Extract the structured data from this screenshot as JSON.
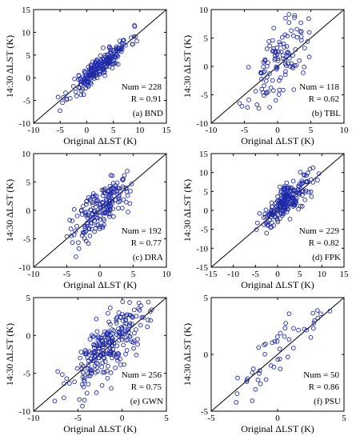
{
  "colors": {
    "point": "#1f2aa8",
    "line": "#000000",
    "frame": "#000000"
  },
  "chart_data": [
    {
      "type": "scatter",
      "panel": "(a) BND",
      "xlabel": "Original ΔLST (K)",
      "ylabel": "14:30 ΔLST (K)",
      "xlim": [
        -10,
        15
      ],
      "ylim": [
        -10,
        15
      ],
      "xticks": [
        -10,
        -5,
        0,
        5,
        10,
        15
      ],
      "yticks": [
        -10,
        -5,
        0,
        5,
        10,
        15
      ],
      "num_label": "Num = 228",
      "r_label": "R = 0.91",
      "points": {
        "seed": 11,
        "n": 228,
        "center": [
          2.5,
          2.5
        ],
        "sx": 2.8,
        "r": 0.91,
        "xlim": [
          -6,
          12
        ]
      }
    },
    {
      "type": "scatter",
      "panel": "(b) TBL",
      "xlabel": "Original ΔLST (K)",
      "ylabel": "14:30 ΔLST (K)",
      "xlim": [
        -10,
        10
      ],
      "ylim": [
        -10,
        10
      ],
      "xticks": [
        -10,
        -5,
        0,
        5,
        10
      ],
      "yticks": [
        -10,
        -5,
        0,
        5,
        10
      ],
      "num_label": "Num = 118",
      "r_label": "R = 0.62",
      "points": {
        "seed": 23,
        "n": 118,
        "center": [
          0.5,
          0.5
        ],
        "sx": 2.3,
        "r": 0.62,
        "xlim": [
          -8,
          5
        ]
      }
    },
    {
      "type": "scatter",
      "panel": "(c) DRA",
      "xlabel": "Original ΔLST (K)",
      "ylabel": "14:30 ΔLST (K)",
      "xlim": [
        -10,
        10
      ],
      "ylim": [
        -10,
        10
      ],
      "xticks": [
        -10,
        -5,
        0,
        5,
        10
      ],
      "yticks": [
        -10,
        -5,
        0,
        5,
        10
      ],
      "num_label": "Num = 192",
      "r_label": "R = 0.77",
      "points": {
        "seed": 37,
        "n": 192,
        "center": [
          0.5,
          0.5
        ],
        "sx": 2.3,
        "r": 0.77,
        "xlim": [
          -9,
          5
        ]
      }
    },
    {
      "type": "scatter",
      "panel": "(d) FPK",
      "xlabel": "Original ΔLST (K)",
      "ylabel": "14:30 ΔLST (K)",
      "xlim": [
        -15,
        15
      ],
      "ylim": [
        -15,
        15
      ],
      "xticks": [
        -15,
        -10,
        -5,
        0,
        5,
        10,
        15
      ],
      "yticks": [
        -15,
        -10,
        -5,
        0,
        5,
        10,
        15
      ],
      "num_label": "Num = 229",
      "r_label": "R = 0.82",
      "points": {
        "seed": 41,
        "n": 229,
        "center": [
          2,
          2.5
        ],
        "sx": 2.8,
        "r": 0.82,
        "xlim": [
          -12,
          10
        ]
      }
    },
    {
      "type": "scatter",
      "panel": "(e) GWN",
      "xlabel": "Original ΔLST (K)",
      "ylabel": "14:30 ΔLST (K)",
      "xlim": [
        -10,
        5
      ],
      "ylim": [
        -10,
        5
      ],
      "xticks": [
        -10,
        -5,
        0,
        5
      ],
      "yticks": [
        -10,
        -5,
        0,
        5
      ],
      "num_label": "Num = 256",
      "r_label": "R = 0.75",
      "points": {
        "seed": 53,
        "n": 256,
        "center": [
          -1.5,
          -1.5
        ],
        "sx": 2.3,
        "r": 0.75,
        "xlim": [
          -8,
          4
        ]
      }
    },
    {
      "type": "scatter",
      "panel": "(f) PSU",
      "xlabel": "Original ΔLST (K)",
      "ylabel": "14:30 ΔLST (K)",
      "xlim": [
        -5,
        5
      ],
      "ylim": [
        -5,
        5
      ],
      "xticks": [
        -5,
        0,
        5
      ],
      "yticks": [
        -5,
        0,
        5
      ],
      "num_label": "Num = 50",
      "r_label": "R = 0.86",
      "points": {
        "seed": 67,
        "n": 50,
        "center": [
          0,
          0
        ],
        "sx": 1.8,
        "r": 0.86,
        "xlim": [
          -4.5,
          4
        ]
      }
    }
  ]
}
